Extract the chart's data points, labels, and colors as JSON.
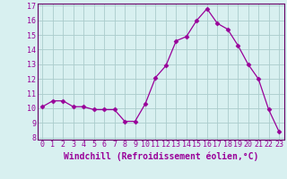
{
  "x": [
    0,
    1,
    2,
    3,
    4,
    5,
    6,
    7,
    8,
    9,
    10,
    11,
    12,
    13,
    14,
    15,
    16,
    17,
    18,
    19,
    20,
    21,
    22,
    23
  ],
  "y": [
    10.1,
    10.5,
    10.5,
    10.1,
    10.1,
    9.9,
    9.9,
    9.9,
    9.1,
    9.1,
    10.3,
    12.1,
    12.9,
    14.6,
    14.9,
    16.0,
    16.8,
    15.8,
    15.4,
    14.3,
    13.0,
    12.0,
    9.9,
    8.4
  ],
  "line_color": "#990099",
  "marker": "D",
  "marker_size": 2.5,
  "bg_color": "#d8f0f0",
  "grid_color": "#aacccc",
  "xlabel": "Windchill (Refroidissement éolien,°C)",
  "ylim": [
    8,
    17
  ],
  "xlim": [
    -0.5,
    23.5
  ],
  "yticks": [
    8,
    9,
    10,
    11,
    12,
    13,
    14,
    15,
    16,
    17
  ],
  "xticks": [
    0,
    1,
    2,
    3,
    4,
    5,
    6,
    7,
    8,
    9,
    10,
    11,
    12,
    13,
    14,
    15,
    16,
    17,
    18,
    19,
    20,
    21,
    22,
    23
  ],
  "tick_fontsize": 6.0,
  "xlabel_fontsize": 7.0,
  "border_color": "#660066"
}
